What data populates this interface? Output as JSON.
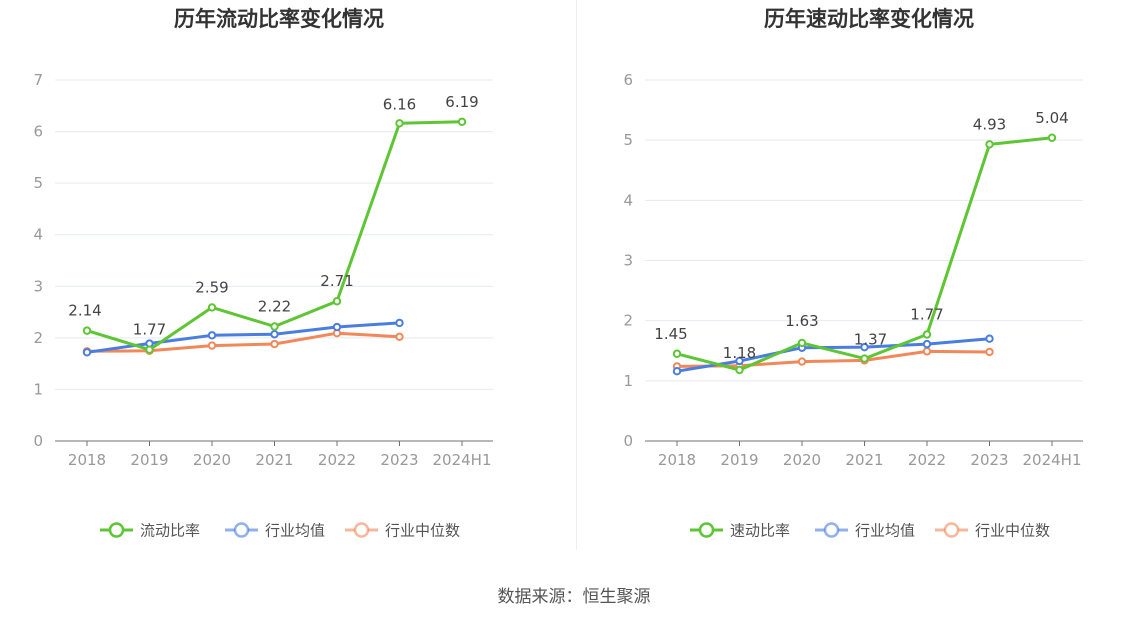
{
  "source": "数据来源：恒生聚源",
  "colors": {
    "main": "#5ec534",
    "avg": "#4a7de0",
    "median": "#f0885a"
  },
  "chart_data": [
    {
      "type": "line",
      "title": "历年流动比率变化情况",
      "categories": [
        "2018",
        "2019",
        "2020",
        "2021",
        "2022",
        "2023",
        "2024H1"
      ],
      "ylim": [
        0,
        7
      ],
      "yticks": [
        0,
        1,
        2,
        3,
        4,
        5,
        6,
        7
      ],
      "grid": true,
      "legend_position": "bottom-center",
      "series": [
        {
          "name": "流动比率",
          "key": "main",
          "values": [
            2.14,
            1.77,
            2.59,
            2.22,
            2.71,
            6.16,
            6.19
          ],
          "labels": [
            "2.14",
            "1.77",
            "2.59",
            "2.22",
            "2.71",
            "6.16",
            "6.19"
          ]
        },
        {
          "name": "行业均值",
          "key": "avg",
          "values": [
            1.72,
            1.89,
            2.05,
            2.07,
            2.21,
            2.29,
            null
          ]
        },
        {
          "name": "行业中位数",
          "key": "median",
          "values": [
            1.74,
            1.75,
            1.85,
            1.88,
            2.09,
            2.02,
            null
          ]
        }
      ]
    },
    {
      "type": "line",
      "title": "历年速动比率变化情况",
      "categories": [
        "2018",
        "2019",
        "2020",
        "2021",
        "2022",
        "2023",
        "2024H1"
      ],
      "ylim": [
        0,
        6
      ],
      "yticks": [
        0,
        1,
        2,
        3,
        4,
        5,
        6
      ],
      "grid": true,
      "legend_position": "bottom-center",
      "series": [
        {
          "name": "速动比率",
          "key": "main",
          "values": [
            1.45,
            1.18,
            1.63,
            1.37,
            1.77,
            4.93,
            5.04
          ],
          "labels": [
            "1.45",
            "1.18",
            "1.63",
            "1.37",
            "1.77",
            "4.93",
            "5.04"
          ]
        },
        {
          "name": "行业均值",
          "key": "avg",
          "values": [
            1.16,
            1.33,
            1.55,
            1.56,
            1.61,
            1.7,
            null
          ]
        },
        {
          "name": "行业中位数",
          "key": "median",
          "values": [
            1.24,
            1.25,
            1.32,
            1.34,
            1.49,
            1.48,
            null
          ]
        }
      ]
    }
  ]
}
